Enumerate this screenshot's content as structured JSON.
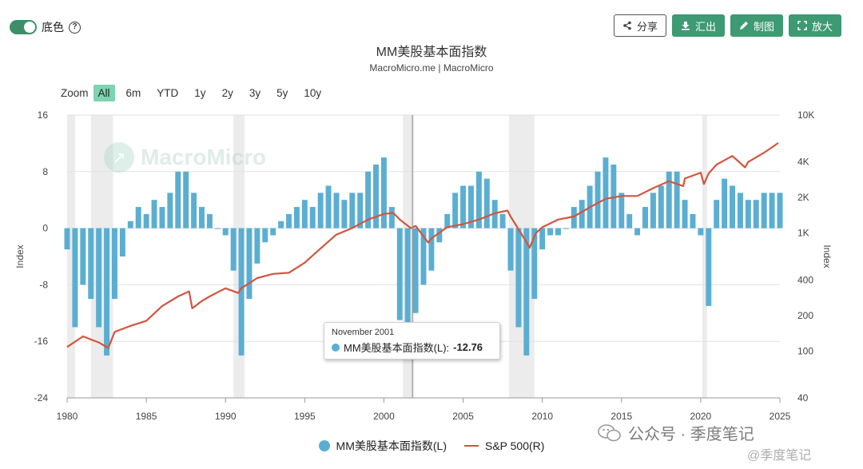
{
  "controls": {
    "background_toggle_label": "底色",
    "help_glyph": "?",
    "toggle_on": true
  },
  "toolbar": {
    "share_label": "分享",
    "export_label": "汇出",
    "draw_label": "制图",
    "expand_label": "放大"
  },
  "zoom": {
    "label": "Zoom",
    "options": [
      "All",
      "6m",
      "YTD",
      "1y",
      "2y",
      "3y",
      "5y",
      "10y"
    ],
    "active": "All"
  },
  "tooltip": {
    "date": "November 2001",
    "series": "MM美股基本面指数(L):",
    "value": "-12.76"
  },
  "watermark": {
    "text": "MacroMicro"
  },
  "brand_overlay": {
    "text": "公众号 · 季度笔记",
    "small": "@季度笔记"
  },
  "colors": {
    "bars": "#5aaed2",
    "line": "#d2553e",
    "recession": "#ececec",
    "accent": "#3d9a73"
  },
  "chart_data": {
    "type": "bar+line",
    "title": "MM美股基本面指数",
    "subtitle": "MacroMicro.me | MacroMicro",
    "xlim": [
      1980,
      2025
    ],
    "x_ticks": [
      1980,
      1985,
      1990,
      1995,
      2000,
      2005,
      2010,
      2015,
      2020,
      2025
    ],
    "y_left": {
      "label": "Index",
      "min": -24,
      "max": 16,
      "ticks": [
        16,
        8,
        0,
        -8,
        -16,
        -24
      ]
    },
    "y_right": {
      "label": "Index",
      "scale": "log",
      "min": 40,
      "max": 10000,
      "ticks": [
        10000,
        4000,
        2000,
        1000,
        400,
        200,
        100,
        40
      ],
      "tick_labels": [
        "10K",
        "4K",
        "2K",
        "1K",
        "400",
        "200",
        "100",
        "40"
      ]
    },
    "recessions": [
      [
        1980.0,
        1980.5
      ],
      [
        1981.5,
        1982.9
      ],
      [
        1990.5,
        1991.2
      ],
      [
        2001.2,
        2001.9
      ],
      [
        2007.9,
        2009.5
      ],
      [
        2020.1,
        2020.4
      ]
    ],
    "crosshair_x": 2001.8,
    "series": [
      {
        "name": "MM美股基本面指数(L)",
        "kind": "bar",
        "x": [
          1980.0,
          1980.5,
          1981.0,
          1981.5,
          1982.0,
          1982.5,
          1983.0,
          1983.5,
          1984.0,
          1984.5,
          1985.0,
          1985.5,
          1986.0,
          1986.5,
          1987.0,
          1987.5,
          1988.0,
          1988.5,
          1989.0,
          1989.5,
          1990.0,
          1990.5,
          1991.0,
          1991.5,
          1992.0,
          1992.5,
          1993.0,
          1993.5,
          1994.0,
          1994.5,
          1995.0,
          1995.5,
          1996.0,
          1996.5,
          1997.0,
          1997.5,
          1998.0,
          1998.5,
          1999.0,
          1999.5,
          2000.0,
          2000.5,
          2001.0,
          2001.5,
          2002.0,
          2002.5,
          2003.0,
          2003.5,
          2004.0,
          2004.5,
          2005.0,
          2005.5,
          2006.0,
          2006.5,
          2007.0,
          2007.5,
          2008.0,
          2008.5,
          2009.0,
          2009.5,
          2010.0,
          2010.5,
          2011.0,
          2011.5,
          2012.0,
          2012.5,
          2013.0,
          2013.5,
          2014.0,
          2014.5,
          2015.0,
          2015.5,
          2016.0,
          2016.5,
          2017.0,
          2017.5,
          2018.0,
          2018.5,
          2019.0,
          2019.5,
          2020.0,
          2020.5,
          2021.0,
          2021.5,
          2022.0,
          2022.5,
          2023.0,
          2023.5,
          2024.0,
          2024.5,
          2025.0
        ],
        "values": [
          -3,
          -14,
          -8,
          -10,
          -14,
          -18,
          -10,
          -4,
          1,
          3,
          2,
          4,
          3,
          5,
          8,
          8,
          5,
          3,
          2,
          0,
          -1,
          -6,
          -18,
          -10,
          -5,
          -2,
          -1,
          1,
          2,
          3,
          4,
          3,
          5,
          6,
          5,
          4,
          5,
          5,
          8,
          9,
          10,
          3,
          -13,
          -14,
          -12,
          -8,
          -6,
          -2,
          2,
          5,
          6,
          6,
          8,
          7,
          4,
          2,
          -6,
          -14,
          -18,
          -10,
          -3,
          -1,
          -1,
          0,
          3,
          4,
          6,
          8,
          10,
          9,
          5,
          2,
          -1,
          3,
          5,
          6,
          8,
          8,
          4,
          2,
          -1,
          -11,
          4,
          7,
          6,
          5,
          4,
          4,
          5,
          5,
          5
        ]
      },
      {
        "name": "S&P 500(R)",
        "kind": "line",
        "x": [
          1980.0,
          1981.0,
          1982.0,
          1982.6,
          1983.0,
          1984.0,
          1985.0,
          1986.0,
          1987.0,
          1987.7,
          1987.9,
          1988.5,
          1989.0,
          1990.0,
          1990.8,
          1991.0,
          1992.0,
          1993.0,
          1994.0,
          1995.0,
          1996.0,
          1997.0,
          1998.0,
          1999.0,
          2000.0,
          2000.6,
          2001.0,
          2001.7,
          2002.0,
          2002.8,
          2003.0,
          2004.0,
          2005.0,
          2006.0,
          2007.0,
          2007.8,
          2008.0,
          2008.9,
          2009.2,
          2009.6,
          2010.0,
          2011.0,
          2012.0,
          2013.0,
          2014.0,
          2015.0,
          2016.0,
          2017.0,
          2018.0,
          2018.9,
          2019.0,
          2020.0,
          2020.2,
          2020.5,
          2021.0,
          2022.0,
          2022.8,
          2023.0,
          2024.0,
          2024.9
        ],
        "values": [
          108,
          133,
          118,
          106,
          145,
          163,
          180,
          240,
          290,
          320,
          230,
          265,
          290,
          340,
          310,
          340,
          415,
          450,
          460,
          560,
          740,
          970,
          1100,
          1300,
          1450,
          1480,
          1300,
          1100,
          1150,
          830,
          900,
          1120,
          1190,
          1300,
          1470,
          1550,
          1380,
          880,
          750,
          1000,
          1120,
          1300,
          1380,
          1650,
          1950,
          2060,
          2060,
          2400,
          2750,
          2500,
          2900,
          3250,
          2600,
          3200,
          3800,
          4500,
          3600,
          4000,
          4800,
          5800
        ]
      }
    ]
  }
}
